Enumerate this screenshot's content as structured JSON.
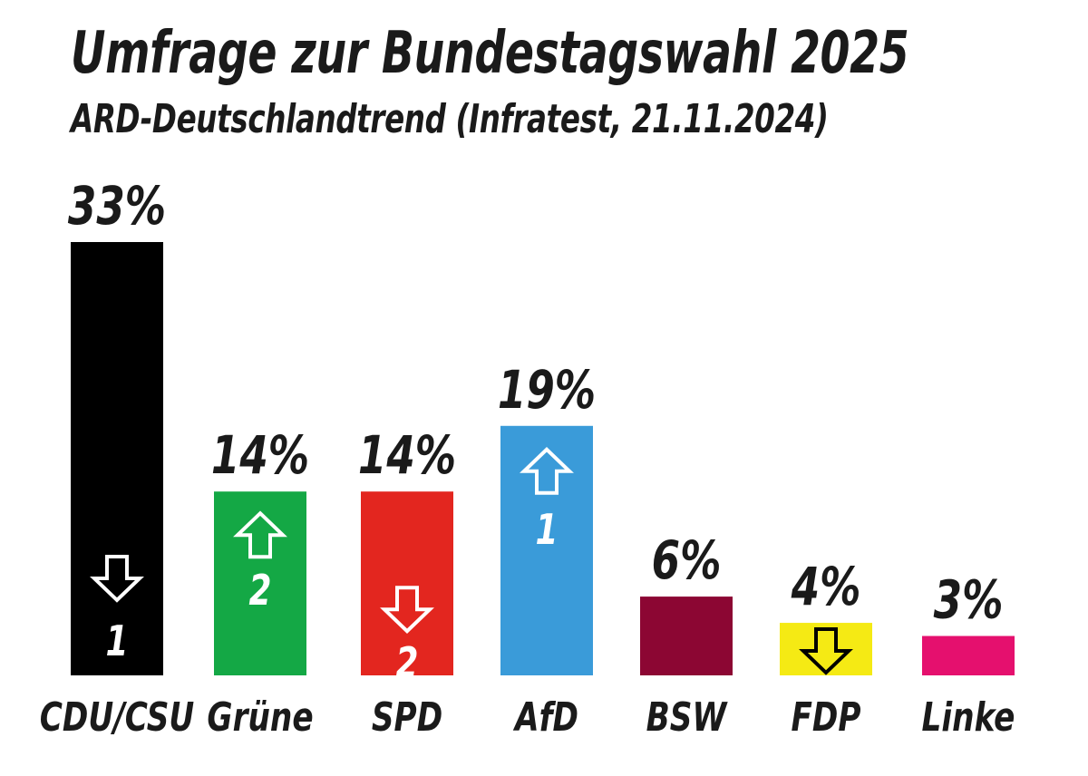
{
  "title": "Umfrage zur Bundestagswahl 2025",
  "subtitle": "ARD-Deutschlandtrend (Infratest, 21.11.2024)",
  "chart_data": {
    "type": "bar",
    "categories": [
      "CDU/CSU",
      "Grüne",
      "SPD",
      "AfD",
      "BSW",
      "FDP",
      "Linke"
    ],
    "values": [
      33,
      14,
      14,
      19,
      6,
      4,
      3
    ],
    "value_labels": [
      "33%",
      "14%",
      "14%",
      "19%",
      "6%",
      "4%",
      "3%"
    ],
    "colors": [
      "#000000",
      "#14a845",
      "#e3261f",
      "#3a9bd9",
      "#8c0633",
      "#f5ea14",
      "#e5106e"
    ],
    "changes": [
      {
        "direction": "down",
        "label": "1",
        "arrow_color": "#ffffff"
      },
      {
        "direction": "up",
        "label": "2",
        "arrow_color": "#ffffff"
      },
      {
        "direction": "down",
        "label": "2",
        "arrow_color": "#ffffff"
      },
      {
        "direction": "up",
        "label": "1",
        "arrow_color": "#ffffff"
      },
      null,
      {
        "direction": "down",
        "label": "",
        "arrow_color": "#000000"
      },
      null
    ],
    "ylim": [
      0,
      33
    ],
    "grid": false,
    "legend": "none",
    "xlabel": "",
    "ylabel": ""
  }
}
